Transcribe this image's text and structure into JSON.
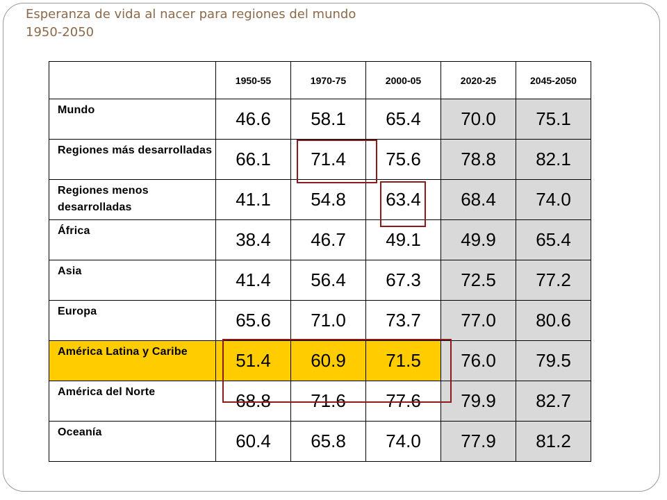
{
  "title_line1": "Esperanza de vida al nacer para regiones del mundo",
  "title_line2": "1950-2050",
  "columns": [
    "1950-55",
    "1970-75",
    "2000-05",
    "2020-25",
    "2045-2050"
  ],
  "rows": [
    {
      "label": "Mundo",
      "values": [
        "46.6",
        "58.1",
        "65.4",
        "70.0",
        "75.1"
      ]
    },
    {
      "label": "Regiones más desarrolladas",
      "values": [
        "66.1",
        "71.4",
        "75.6",
        "78.8",
        "82.1"
      ]
    },
    {
      "label": "Regiones menos desarrolladas",
      "values": [
        "41.1",
        "54.8",
        "63.4",
        "68.4",
        "74.0"
      ]
    },
    {
      "label": "África",
      "values": [
        "38.4",
        "46.7",
        "49.1",
        "49.9",
        "65.4"
      ]
    },
    {
      "label": "Asia",
      "values": [
        "41.4",
        "56.4",
        "67.3",
        "72.5",
        "77.2"
      ]
    },
    {
      "label": "Europa",
      "values": [
        "65.6",
        "71.0",
        "73.7",
        "77.0",
        "80.6"
      ]
    },
    {
      "label": "América Latina y Caribe",
      "values": [
        "51.4",
        "60.9",
        "71.5",
        "76.0",
        "79.5"
      ]
    },
    {
      "label": "América del Norte",
      "values": [
        "68.8",
        "71.6",
        "77.6",
        "79.9",
        "82.7"
      ]
    },
    {
      "label": "Oceanía",
      "values": [
        "60.4",
        "65.8",
        "74.0",
        "77.9",
        "81.2"
      ]
    }
  ],
  "colors": {
    "highlight_row": "#ffcc00",
    "projection_shade": "#d9d9d9",
    "box_outline": "#8b1a1a",
    "title": "#8a6a4a"
  }
}
